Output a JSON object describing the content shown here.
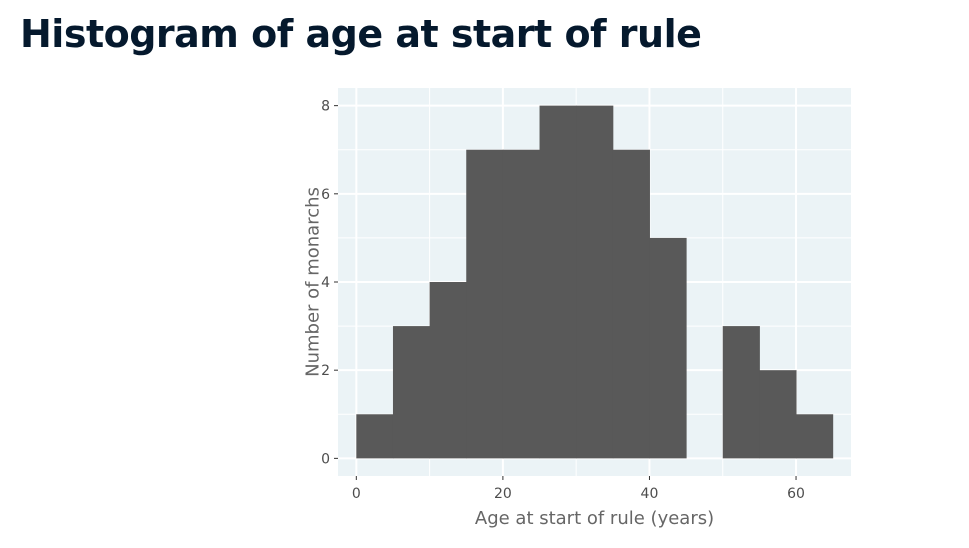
{
  "page": {
    "title": "Histogram of age at start of rule"
  },
  "chart_data": {
    "type": "bar",
    "subtype": "histogram",
    "bin_width": 5,
    "bins": [
      {
        "start": 0,
        "end": 5,
        "count": 1
      },
      {
        "start": 5,
        "end": 10,
        "count": 3
      },
      {
        "start": 10,
        "end": 15,
        "count": 4
      },
      {
        "start": 15,
        "end": 20,
        "count": 7
      },
      {
        "start": 20,
        "end": 25,
        "count": 7
      },
      {
        "start": 25,
        "end": 30,
        "count": 8
      },
      {
        "start": 30,
        "end": 35,
        "count": 8
      },
      {
        "start": 35,
        "end": 40,
        "count": 7
      },
      {
        "start": 40,
        "end": 45,
        "count": 5
      },
      {
        "start": 45,
        "end": 50,
        "count": 0
      },
      {
        "start": 50,
        "end": 55,
        "count": 3
      },
      {
        "start": 55,
        "end": 60,
        "count": 2
      },
      {
        "start": 60,
        "end": 65,
        "count": 1
      }
    ],
    "xlabel": "Age at start of rule (years)",
    "ylabel": "Number of monarchs",
    "xlim": [
      -2.5,
      67.5
    ],
    "ylim": [
      -0.4,
      8.4
    ],
    "x_ticks": [
      0,
      20,
      40,
      60
    ],
    "y_ticks": [
      0,
      2,
      4,
      6,
      8
    ],
    "grid": true,
    "colors": {
      "bar": "#595959",
      "panel_background": "#ebf3f6",
      "grid": "#ffffff"
    }
  }
}
